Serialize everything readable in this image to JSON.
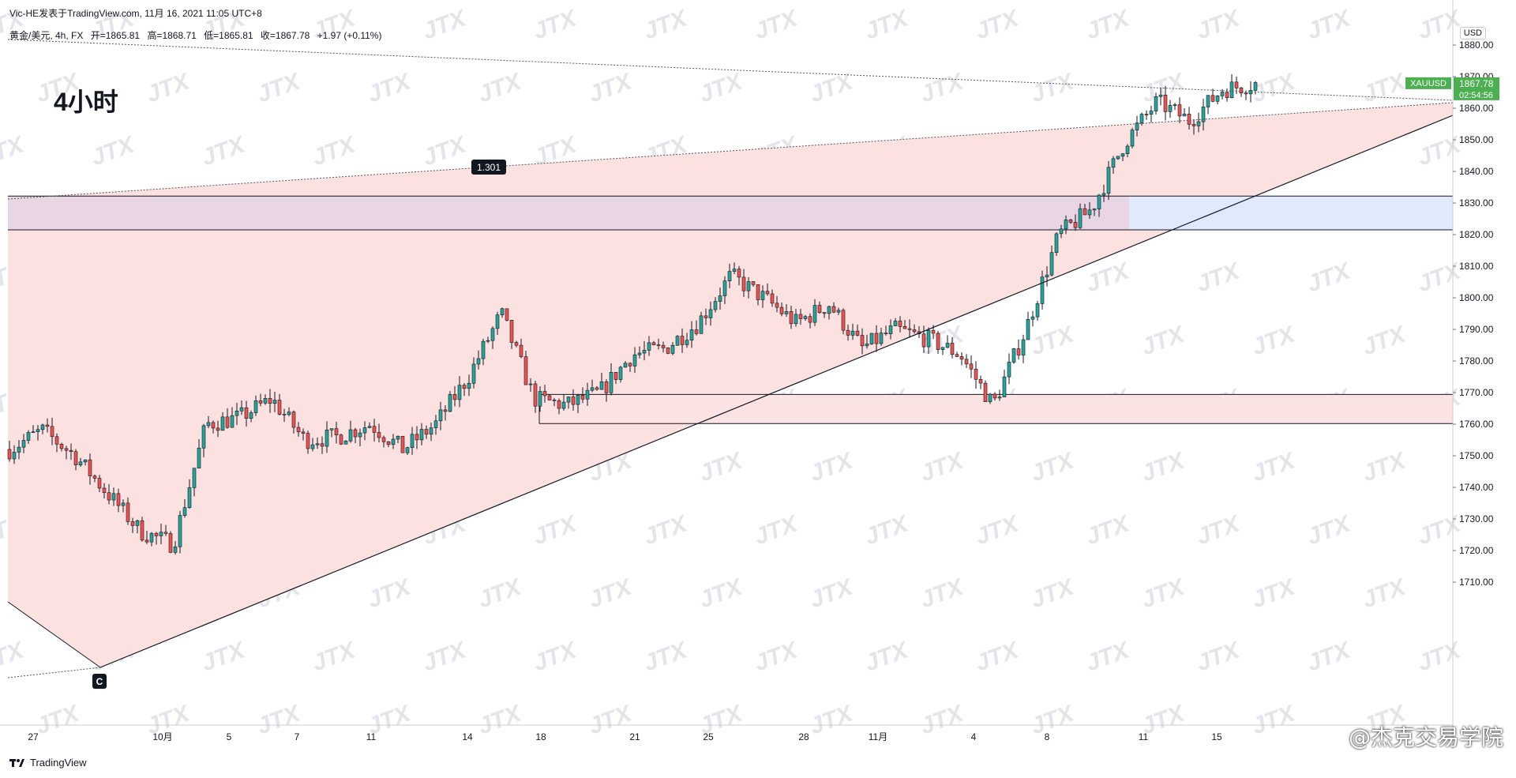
{
  "header": {
    "publish": "Vic-HE发表于TradingView.com, 11月 16, 2021 11:05 UTC+8",
    "symbol": "黄金/美元, 4h, FX",
    "open": "开=1865.81",
    "high": "高=1868.71",
    "low": "低=1865.81",
    "close": "收=1867.78",
    "change": "+1.97 (+0.11%)",
    "timeframe": "4小时"
  },
  "currency": "USD",
  "price_tag": {
    "symbol": "XAUUSD",
    "price": "1867.78",
    "countdown": "02:54:56"
  },
  "annotations": {
    "fib_label": "1.301",
    "wave_label": "C"
  },
  "watermark_text": "JTX",
  "footer": {
    "logo_text": "TradingView",
    "brand": "@杰克交易学院"
  },
  "colors": {
    "up": "#26a69a",
    "down": "#ef5350",
    "triangle_fill": "#fce1e1",
    "zone_fill": "#e1eafc",
    "price_tag": "#4caf50"
  },
  "chart_data": {
    "type": "candlestick",
    "title": "黄金/美元, 4h, FX",
    "y_axis": {
      "range": [
        1703,
        1888
      ],
      "ticks": [
        "1710.00",
        "1720.00",
        "1730.00",
        "1740.00",
        "1750.00",
        "1760.00",
        "1770.00",
        "1780.00",
        "1790.00",
        "1800.00",
        "1810.00",
        "1820.00",
        "1830.00",
        "1840.00",
        "1850.00",
        "1860.00",
        "1870.00",
        "1880.00"
      ]
    },
    "x_axis": {
      "ticks": [
        "27",
        "10月",
        "5",
        "7",
        "11",
        "14",
        "18",
        "21",
        "25",
        "28",
        "11月",
        "4",
        "8",
        "11",
        "15"
      ]
    },
    "grid": false,
    "last_close": 1867.78,
    "price_path": [
      {
        "t": "09-24",
        "price": 1752
      },
      {
        "t": "09-25",
        "price": 1758
      },
      {
        "t": "09-27",
        "price": 1750
      },
      {
        "t": "09-28",
        "price": 1738
      },
      {
        "t": "09-29",
        "price": 1726
      },
      {
        "t": "09-30",
        "price": 1722
      },
      {
        "t": "10-01",
        "price": 1760
      },
      {
        "t": "10-04",
        "price": 1762
      },
      {
        "t": "10-05",
        "price": 1768
      },
      {
        "t": "10-06",
        "price": 1755
      },
      {
        "t": "10-07",
        "price": 1756
      },
      {
        "t": "10-08",
        "price": 1760
      },
      {
        "t": "10-11",
        "price": 1752
      },
      {
        "t": "10-12",
        "price": 1760
      },
      {
        "t": "10-13",
        "price": 1775
      },
      {
        "t": "10-14",
        "price": 1795
      },
      {
        "t": "10-15",
        "price": 1768
      },
      {
        "t": "10-18",
        "price": 1766
      },
      {
        "t": "10-19",
        "price": 1770
      },
      {
        "t": "10-20",
        "price": 1782
      },
      {
        "t": "10-21",
        "price": 1784
      },
      {
        "t": "10-22",
        "price": 1792
      },
      {
        "t": "10-25",
        "price": 1807
      },
      {
        "t": "10-26",
        "price": 1800
      },
      {
        "t": "10-27",
        "price": 1792
      },
      {
        "t": "10-28",
        "price": 1798
      },
      {
        "t": "10-29",
        "price": 1784
      },
      {
        "t": "11-01",
        "price": 1790
      },
      {
        "t": "11-02",
        "price": 1787
      },
      {
        "t": "11-03",
        "price": 1782
      },
      {
        "t": "11-04",
        "price": 1766
      },
      {
        "t": "11-05",
        "price": 1790
      },
      {
        "t": "11-08",
        "price": 1820
      },
      {
        "t": "11-09",
        "price": 1828
      },
      {
        "t": "11-10",
        "price": 1849
      },
      {
        "t": "11-11",
        "price": 1862
      },
      {
        "t": "11-12",
        "price": 1856
      },
      {
        "t": "11-15",
        "price": 1866
      },
      {
        "t": "11-16",
        "price": 1867.78
      }
    ],
    "horizontal_zones": [
      {
        "from": 1821.5,
        "to": 1832.2
      },
      {
        "from": 1760.2,
        "to": 1769.4
      }
    ]
  }
}
